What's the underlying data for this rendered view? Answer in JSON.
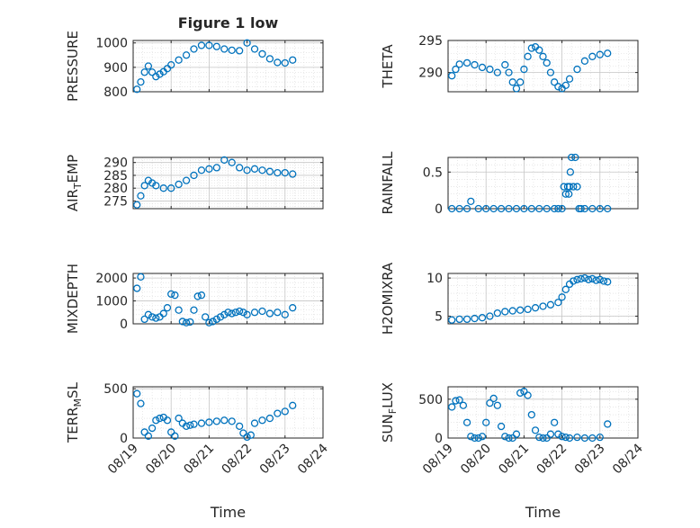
{
  "figure": {
    "title": "Figure 1 low",
    "xlabel": "Time",
    "xticks": [
      "08/19",
      "08/20",
      "08/21",
      "08/22",
      "08/23",
      "08/24"
    ],
    "marker_color": "#0072BD"
  },
  "chart_data": [
    {
      "type": "scatter",
      "name": "pressure",
      "ylabel": "PRESSURE",
      "ylabel_sub": "",
      "ylabel_post": "",
      "ylim": [
        800,
        1010
      ],
      "yticks": [
        800,
        900,
        1000
      ],
      "x": [
        19.1,
        19.2,
        19.3,
        19.4,
        19.5,
        19.6,
        19.7,
        19.8,
        19.9,
        20.0,
        20.2,
        20.4,
        20.6,
        20.8,
        21.0,
        21.2,
        21.4,
        21.6,
        21.8,
        22.0,
        22.2,
        22.4,
        22.6,
        22.8,
        23.0,
        23.2
      ],
      "values": [
        810,
        840,
        880,
        905,
        880,
        862,
        872,
        882,
        895,
        910,
        930,
        950,
        975,
        990,
        990,
        985,
        975,
        970,
        968,
        1000,
        975,
        955,
        935,
        920,
        918,
        930
      ]
    },
    {
      "type": "scatter",
      "name": "theta",
      "ylabel": "THETA",
      "ylabel_sub": "",
      "ylabel_post": "",
      "ylim": [
        287,
        295
      ],
      "yticks": [
        290,
        295
      ],
      "x": [
        19.1,
        19.2,
        19.3,
        19.5,
        19.7,
        19.9,
        20.1,
        20.3,
        20.5,
        20.6,
        20.7,
        20.8,
        20.9,
        21.0,
        21.1,
        21.2,
        21.3,
        21.4,
        21.5,
        21.6,
        21.7,
        21.8,
        21.9,
        22.0,
        22.1,
        22.2,
        22.4,
        22.6,
        22.8,
        23.0,
        23.2
      ],
      "values": [
        289.5,
        290.5,
        291.3,
        291.5,
        291.2,
        290.8,
        290.5,
        290.0,
        291.2,
        290.0,
        288.5,
        287.5,
        288.5,
        290.5,
        292.5,
        293.8,
        294.0,
        293.5,
        292.5,
        291.5,
        290.0,
        288.5,
        287.8,
        287.5,
        288.0,
        289.0,
        290.5,
        291.8,
        292.5,
        292.8,
        293.0
      ]
    },
    {
      "type": "scatter",
      "name": "air_temp",
      "ylabel": "AIR",
      "ylabel_sub": "T",
      "ylabel_post": "EMP",
      "ylim": [
        272,
        292
      ],
      "yticks": [
        275,
        280,
        285,
        290
      ],
      "x": [
        19.1,
        19.2,
        19.3,
        19.4,
        19.5,
        19.6,
        19.8,
        20.0,
        20.2,
        20.4,
        20.6,
        20.8,
        21.0,
        21.2,
        21.4,
        21.6,
        21.8,
        22.0,
        22.2,
        22.4,
        22.6,
        22.8,
        23.0,
        23.2
      ],
      "values": [
        273.5,
        277,
        281,
        283,
        282,
        281,
        280,
        280,
        281.5,
        283,
        285,
        287,
        287.5,
        288,
        291,
        290,
        288,
        287,
        287.5,
        287,
        286.5,
        286,
        286,
        285.5
      ]
    },
    {
      "type": "scatter",
      "name": "rainfall",
      "ylabel": "RAINFALL",
      "ylabel_sub": "",
      "ylabel_post": "",
      "ylim": [
        0,
        0.7
      ],
      "yticks": [
        0,
        0.5
      ],
      "x": [
        19.1,
        19.3,
        19.5,
        19.6,
        19.8,
        20.0,
        20.2,
        20.4,
        20.6,
        20.8,
        21.0,
        21.2,
        21.4,
        21.6,
        21.8,
        21.9,
        22.0,
        22.05,
        22.1,
        22.15,
        22.18,
        22.2,
        22.22,
        22.25,
        22.3,
        22.35,
        22.4,
        22.45,
        22.5,
        22.6,
        22.8,
        23.0,
        23.2
      ],
      "values": [
        0,
        0,
        0,
        0.1,
        0,
        0,
        0,
        0,
        0,
        0,
        0,
        0,
        0,
        0,
        0,
        0,
        0,
        0.3,
        0.2,
        0.3,
        0.2,
        0.3,
        0.5,
        0.7,
        0.3,
        0.7,
        0.3,
        0,
        0,
        0,
        0,
        0,
        0
      ]
    },
    {
      "type": "scatter",
      "name": "mixdepth",
      "ylabel": "MIXDEPTH",
      "ylabel_sub": "",
      "ylabel_post": "",
      "ylim": [
        0,
        2200
      ],
      "yticks": [
        0,
        1000,
        2000
      ],
      "x": [
        19.1,
        19.2,
        19.3,
        19.4,
        19.5,
        19.6,
        19.7,
        19.8,
        19.9,
        20.0,
        20.1,
        20.2,
        20.3,
        20.4,
        20.5,
        20.6,
        20.7,
        20.8,
        20.9,
        21.0,
        21.1,
        21.2,
        21.3,
        21.4,
        21.5,
        21.6,
        21.7,
        21.8,
        21.9,
        22.0,
        22.2,
        22.4,
        22.6,
        22.8,
        23.0,
        23.2
      ],
      "values": [
        1550,
        2050,
        200,
        400,
        300,
        250,
        300,
        450,
        700,
        1300,
        1250,
        600,
        100,
        50,
        80,
        600,
        1200,
        1250,
        300,
        50,
        100,
        200,
        300,
        400,
        500,
        450,
        500,
        550,
        500,
        400,
        500,
        550,
        450,
        500,
        400,
        700
      ]
    },
    {
      "type": "scatter",
      "name": "h2o",
      "ylabel": "H2OMIXRA",
      "ylabel_sub": "",
      "ylabel_post": "",
      "ylim": [
        4,
        10.6
      ],
      "yticks": [
        5,
        10
      ],
      "x": [
        19.1,
        19.3,
        19.5,
        19.7,
        19.9,
        20.1,
        20.3,
        20.5,
        20.7,
        20.9,
        21.1,
        21.3,
        21.5,
        21.7,
        21.9,
        22.0,
        22.1,
        22.2,
        22.3,
        22.4,
        22.5,
        22.6,
        22.7,
        22.8,
        22.9,
        23.0,
        23.1,
        23.2
      ],
      "values": [
        4.5,
        4.6,
        4.6,
        4.7,
        4.8,
        5.0,
        5.4,
        5.6,
        5.7,
        5.8,
        5.9,
        6.1,
        6.3,
        6.5,
        6.8,
        7.5,
        8.5,
        9.2,
        9.6,
        9.8,
        9.9,
        10.0,
        9.8,
        9.9,
        9.7,
        9.8,
        9.6,
        9.5
      ]
    },
    {
      "type": "scatter",
      "name": "terr_msl",
      "ylabel": "TERR",
      "ylabel_sub": "M",
      "ylabel_post": "SL",
      "ylim": [
        0,
        520
      ],
      "yticks": [
        0,
        500
      ],
      "x": [
        19.1,
        19.2,
        19.3,
        19.4,
        19.5,
        19.6,
        19.7,
        19.8,
        19.9,
        20.0,
        20.1,
        20.2,
        20.3,
        20.4,
        20.5,
        20.6,
        20.8,
        21.0,
        21.2,
        21.4,
        21.6,
        21.8,
        21.9,
        22.0,
        22.1,
        22.2,
        22.4,
        22.6,
        22.8,
        23.0,
        23.2
      ],
      "values": [
        450,
        350,
        60,
        20,
        100,
        180,
        200,
        210,
        180,
        60,
        20,
        200,
        150,
        120,
        130,
        140,
        150,
        160,
        170,
        180,
        170,
        120,
        50,
        10,
        30,
        150,
        180,
        200,
        250,
        270,
        330
      ]
    },
    {
      "type": "scatter",
      "name": "sun_flux",
      "ylabel": "SUN",
      "ylabel_sub": "F",
      "ylabel_post": "LUX",
      "ylim": [
        0,
        660
      ],
      "yticks": [
        0,
        500
      ],
      "x": [
        19.1,
        19.2,
        19.3,
        19.4,
        19.5,
        19.6,
        19.7,
        19.8,
        19.9,
        20.0,
        20.1,
        20.2,
        20.3,
        20.4,
        20.5,
        20.6,
        20.7,
        20.8,
        20.9,
        21.0,
        21.1,
        21.2,
        21.3,
        21.4,
        21.5,
        21.6,
        21.7,
        21.8,
        21.9,
        22.0,
        22.1,
        22.2,
        22.4,
        22.6,
        22.8,
        23.0,
        23.2
      ],
      "values": [
        400,
        480,
        490,
        420,
        200,
        20,
        0,
        0,
        20,
        200,
        450,
        510,
        420,
        150,
        20,
        0,
        0,
        50,
        580,
        600,
        550,
        300,
        100,
        10,
        0,
        0,
        50,
        200,
        50,
        20,
        10,
        0,
        10,
        0,
        0,
        10,
        180
      ]
    }
  ]
}
